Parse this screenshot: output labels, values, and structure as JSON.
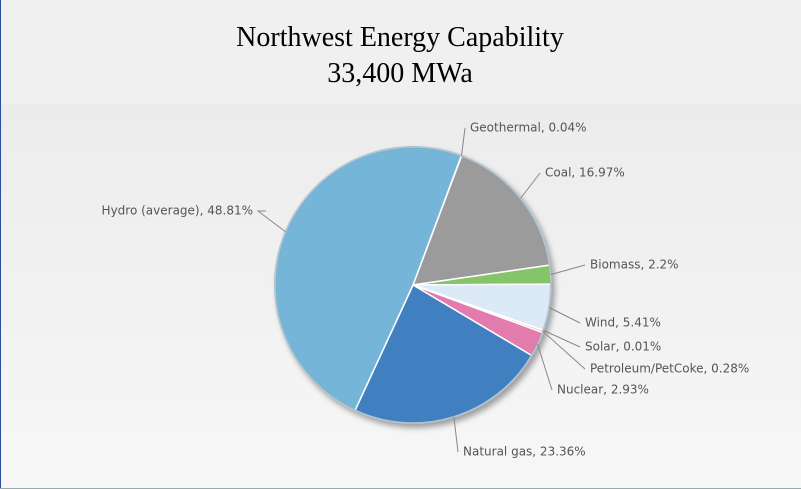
{
  "chart_data": {
    "type": "pie",
    "title": "Northwest Energy Capability",
    "subtitle": "33,400 MWa",
    "labels": [
      "Geothermal, 0.04%",
      "Coal, 16.97%",
      "Biomass, 2.2%",
      "Wind, 5.41%",
      "Solar, 0.01%",
      "Petroleum/PetCoke, 0.28%",
      "Nuclear, 2.93%",
      "Natural gas, 23.36%",
      "Hydro (average), 48.81%"
    ],
    "values": [
      0.04,
      16.97,
      2.2,
      5.41,
      0.01,
      0.28,
      2.93,
      23.36,
      48.81
    ],
    "colors": [
      "#c9a97a",
      "#9b9b9b",
      "#86c46a",
      "#dce9f6",
      "#f2e27a",
      "#f4c8a2",
      "#e27cae",
      "#3f7fc0",
      "#74b6d8"
    ]
  }
}
